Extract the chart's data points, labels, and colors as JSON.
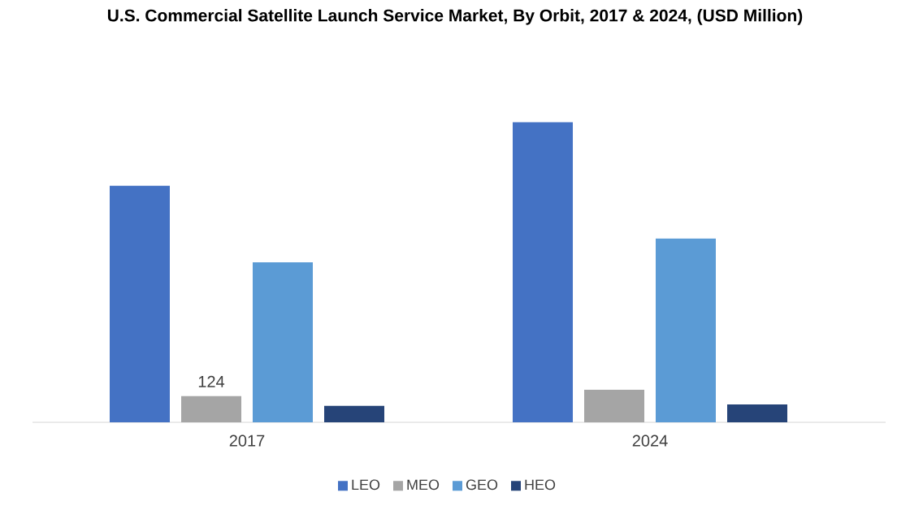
{
  "chart_data": {
    "type": "bar",
    "title": "U.S. Commercial Satellite Launch Service Market, By Orbit, 2017 & 2024, (USD Million)",
    "categories": [
      "2017",
      "2024"
    ],
    "series": [
      {
        "name": "LEO",
        "color": "#4472c4",
        "values": [
          1124,
          1426
        ]
      },
      {
        "name": "MEO",
        "color": "#a5a5a5",
        "values": [
          124,
          155
        ],
        "value_labels": [
          "124",
          null
        ]
      },
      {
        "name": "GEO",
        "color": "#5b9bd5",
        "values": [
          760,
          873
        ]
      },
      {
        "name": "HEO",
        "color": "#264478",
        "values": [
          78,
          85
        ]
      }
    ],
    "tick_labels": "x",
    "legend": "bottom"
  }
}
